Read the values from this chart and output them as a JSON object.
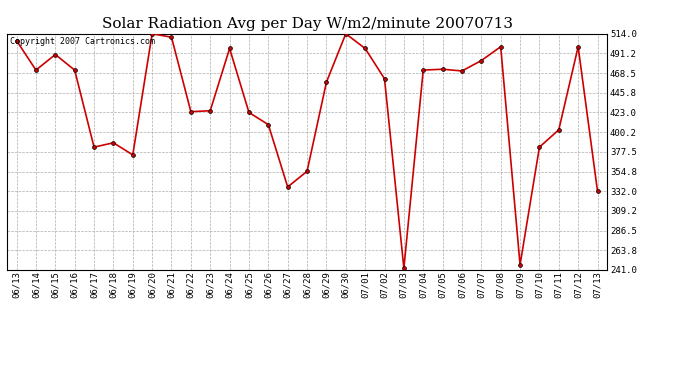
{
  "title": "Solar Radiation Avg per Day W/m2/minute 20070713",
  "copyright_text": "Copyright 2007 Cartronics.com",
  "x_labels": [
    "06/13",
    "06/14",
    "06/15",
    "06/16",
    "06/17",
    "06/18",
    "06/19",
    "06/20",
    "06/21",
    "06/22",
    "06/23",
    "06/24",
    "06/25",
    "06/26",
    "06/27",
    "06/28",
    "06/29",
    "06/30",
    "07/01",
    "07/02",
    "07/03",
    "07/04",
    "07/05",
    "07/06",
    "07/07",
    "07/08",
    "07/09",
    "07/10",
    "07/11",
    "07/12",
    "07/13"
  ],
  "y_values": [
    506.0,
    472.0,
    490.0,
    472.0,
    383.0,
    388.0,
    374.0,
    514.0,
    510.0,
    424.0,
    425.0,
    497.0,
    423.0,
    409.0,
    337.0,
    355.0,
    458.0,
    514.0,
    497.0,
    462.0,
    243.0,
    472.0,
    473.0,
    471.0,
    483.0,
    499.0,
    247.0,
    383.0,
    403.0,
    499.0,
    332.0
  ],
  "line_color": "#cc0000",
  "marker_color": "#000000",
  "bg_color": "#ffffff",
  "plot_bg_color": "#ffffff",
  "grid_color": "#999999",
  "title_fontsize": 11,
  "copyright_fontsize": 6,
  "tick_fontsize": 6.5,
  "ylim_min": 241.0,
  "ylim_max": 514.0,
  "ytick_values": [
    514.0,
    491.2,
    468.5,
    445.8,
    423.0,
    400.2,
    377.5,
    354.8,
    332.0,
    309.2,
    286.5,
    263.8,
    241.0
  ]
}
